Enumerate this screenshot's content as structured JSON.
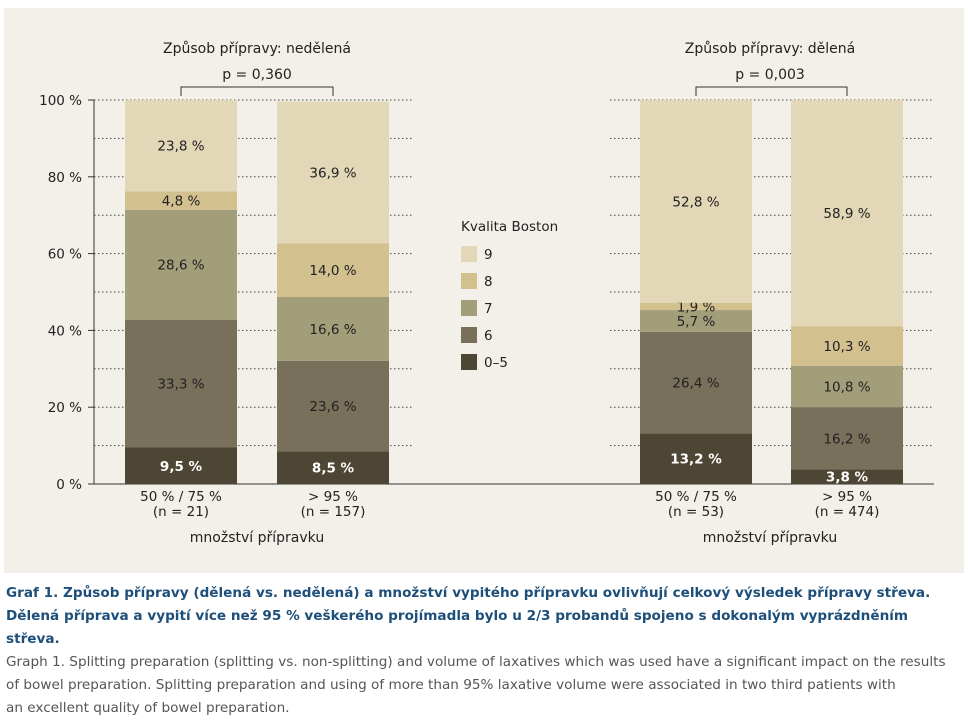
{
  "chart_data": {
    "type": "bar",
    "stacked": true,
    "ylim": [
      0,
      100
    ],
    "yticks": [
      "0 %",
      "20 %",
      "40 %",
      "60 %",
      "80 %",
      "100 %"
    ],
    "legend": {
      "title": "Kvalita Boston",
      "placement": "center",
      "items": [
        {
          "label": "9",
          "color": "#e2d7b7"
        },
        {
          "label": "8",
          "color": "#d2c08f"
        },
        {
          "label": "7",
          "color": "#a39e7a"
        },
        {
          "label": "6",
          "color": "#78705a"
        },
        {
          "label": "0–5",
          "color": "#4e4634"
        }
      ]
    },
    "groups": [
      {
        "title": "Způsob přípravy: nedělená",
        "p_value": "p = 0,360",
        "xlabel": "množství přípravku",
        "bars": [
          {
            "category": [
              "50 % / 75 %",
              "(n = 21)"
            ],
            "segments": [
              {
                "score": "0–5",
                "value": 9.5,
                "label": "9,5 %"
              },
              {
                "score": "6",
                "value": 33.3,
                "label": "33,3 %"
              },
              {
                "score": "7",
                "value": 28.6,
                "label": "28,6 %"
              },
              {
                "score": "8",
                "value": 4.8,
                "label": "4,8 %"
              },
              {
                "score": "9",
                "value": 23.8,
                "label": "23,8 %"
              }
            ]
          },
          {
            "category": [
              "> 95 %",
              "(n = 157)"
            ],
            "segments": [
              {
                "score": "0–5",
                "value": 8.5,
                "label": "8,5 %"
              },
              {
                "score": "6",
                "value": 23.6,
                "label": "23,6 %"
              },
              {
                "score": "7",
                "value": 16.6,
                "label": "16,6 %"
              },
              {
                "score": "8",
                "value": 14.0,
                "label": "14,0 %"
              },
              {
                "score": "9",
                "value": 36.9,
                "label": "36,9 %"
              }
            ]
          }
        ]
      },
      {
        "title": "Způsob přípravy: dělená",
        "p_value": "p = 0,003",
        "xlabel": "množství přípravku",
        "bars": [
          {
            "category": [
              "50 % / 75 %",
              "(n = 53)"
            ],
            "segments": [
              {
                "score": "0–5",
                "value": 13.2,
                "label": "13,2 %"
              },
              {
                "score": "6",
                "value": 26.4,
                "label": "26,4 %"
              },
              {
                "score": "7",
                "value": 5.7,
                "label": "5,7 %"
              },
              {
                "score": "8",
                "value": 1.9,
                "label": "1,9 %"
              },
              {
                "score": "9",
                "value": 52.8,
                "label": "52,8 %"
              }
            ]
          },
          {
            "category": [
              "> 95 %",
              "(n = 474)"
            ],
            "segments": [
              {
                "score": "0–5",
                "value": 3.8,
                "label": "3,8 %"
              },
              {
                "score": "6",
                "value": 16.2,
                "label": "16,2 %"
              },
              {
                "score": "7",
                "value": 10.8,
                "label": "10,8 %"
              },
              {
                "score": "8",
                "value": 10.3,
                "label": "10,3 %"
              },
              {
                "score": "9",
                "value": 58.9,
                "label": "58,9 %"
              }
            ]
          }
        ]
      }
    ],
    "grid": true,
    "colors": {
      "panel_background": "#f2f0e9",
      "caption_title": "#1d4f7a"
    }
  },
  "caption": {
    "title_cs_1": "Graf 1. Způsob přípravy (dělená vs. nedělená) a množství vypitého přípravku ovlivňují celkový výsledek přípravy střeva.",
    "title_cs_2": "Dělená příprava a vypití více než 95 % veškerého projímadla bylo u 2/3 probandů spojeno s dokonalým vyprázdněním střeva.",
    "text_en_1": "Graph 1. Splitting preparation (splitting vs. non-splitting) and volume of laxatives which was used have a significant impact on the results",
    "text_en_2": "of bowel preparation. Splitting preparation and using of more than 95% laxative volume were associated in two third patients with",
    "text_en_3": "an excellent quality of bowel preparation."
  }
}
